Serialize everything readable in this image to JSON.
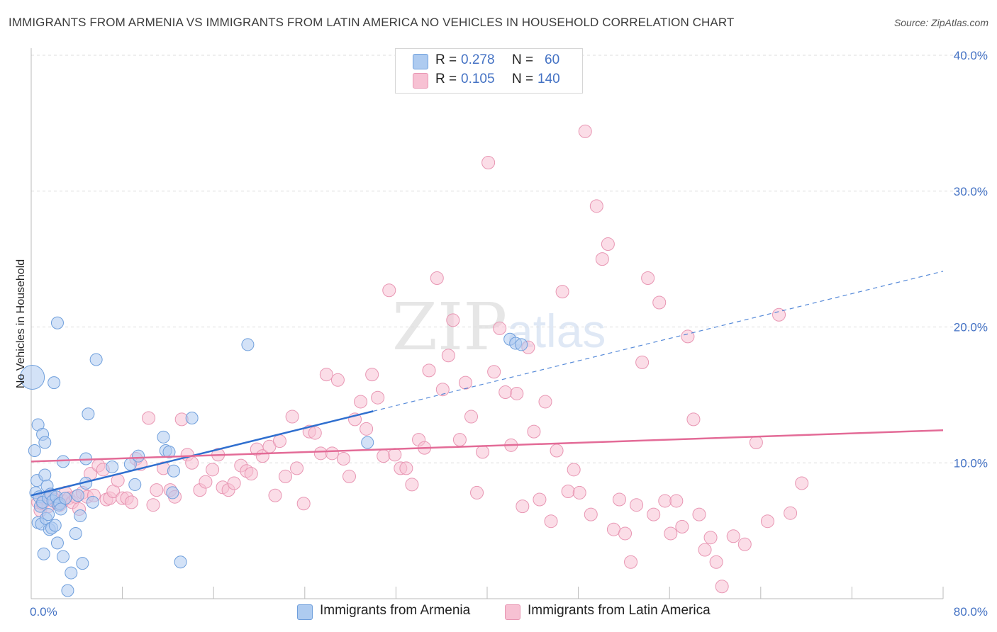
{
  "title": "IMMIGRANTS FROM ARMENIA VS IMMIGRANTS FROM LATIN AMERICA NO VEHICLES IN HOUSEHOLD CORRELATION CHART",
  "source": "Source: ZipAtlas.com",
  "watermark": {
    "zip": "ZIP",
    "atlas": "atlas"
  },
  "legend_top": {
    "rows": [
      {
        "r_label": "R =",
        "r_value": "0.278",
        "n_label": "N =",
        "n_value": "60"
      },
      {
        "r_label": "R =",
        "r_value": "0.105",
        "n_label": "N =",
        "n_value": "140"
      }
    ]
  },
  "legend_bottom": {
    "series1": "Immigrants from Armenia",
    "series2": "Immigrants from Latin America"
  },
  "colors": {
    "blue_fill": "#aecbf0",
    "blue_stroke": "#6f9fdc",
    "blue_line": "#2f6fcf",
    "pink_fill": "#f7c1d3",
    "pink_stroke": "#e896b3",
    "pink_line": "#e36b97",
    "tick_text": "#4472c4",
    "grid": "#dddddd"
  },
  "chart_data": {
    "type": "scatter",
    "title": "IMMIGRANTS FROM ARMENIA VS IMMIGRANTS FROM LATIN AMERICA NO VEHICLES IN HOUSEHOLD CORRELATION CHART",
    "xlabel": "",
    "ylabel": "No Vehicles in Household",
    "xlim": [
      0,
      80
    ],
    "ylim": [
      0,
      40
    ],
    "x_tick_labels": [
      "0.0%",
      "80.0%"
    ],
    "y_tick_labels": [
      "10.0%",
      "20.0%",
      "30.0%",
      "40.0%"
    ],
    "y_ticks": [
      10,
      20,
      30,
      40
    ],
    "grid": true,
    "legend_position": "top-center",
    "series": [
      {
        "name": "Immigrants from Armenia",
        "R": 0.278,
        "N": 60,
        "trend": {
          "x": [
            0,
            30
          ],
          "y": [
            7.6,
            13.8
          ],
          "dashed_extension_to": [
            80,
            24.1
          ]
        },
        "points": [
          [
            0.1,
            16.3
          ],
          [
            0.3,
            10.9
          ],
          [
            0.4,
            7.8
          ],
          [
            0.5,
            8.7
          ],
          [
            0.6,
            12.8
          ],
          [
            0.6,
            5.6
          ],
          [
            0.7,
            7.5
          ],
          [
            0.8,
            6.8
          ],
          [
            0.9,
            5.5
          ],
          [
            1.0,
            12.1
          ],
          [
            1.0,
            7.1
          ],
          [
            1.1,
            3.3
          ],
          [
            1.2,
            11.5
          ],
          [
            1.2,
            9.1
          ],
          [
            1.3,
            5.9
          ],
          [
            1.4,
            8.3
          ],
          [
            1.5,
            6.2
          ],
          [
            1.5,
            7.4
          ],
          [
            1.6,
            5.1
          ],
          [
            1.7,
            7.7
          ],
          [
            1.8,
            5.2
          ],
          [
            1.9,
            7.2
          ],
          [
            2.0,
            15.9
          ],
          [
            2.1,
            5.4
          ],
          [
            2.2,
            7.5
          ],
          [
            2.3,
            4.1
          ],
          [
            2.3,
            20.3
          ],
          [
            2.4,
            6.9
          ],
          [
            2.5,
            7.0
          ],
          [
            2.6,
            6.6
          ],
          [
            2.8,
            10.1
          ],
          [
            2.8,
            3.1
          ],
          [
            3.0,
            7.4
          ],
          [
            3.2,
            0.6
          ],
          [
            3.5,
            1.9
          ],
          [
            3.9,
            4.8
          ],
          [
            4.1,
            7.6
          ],
          [
            4.3,
            6.1
          ],
          [
            4.5,
            2.6
          ],
          [
            4.8,
            10.3
          ],
          [
            4.8,
            8.5
          ],
          [
            5.0,
            13.6
          ],
          [
            5.4,
            7.1
          ],
          [
            5.7,
            17.6
          ],
          [
            7.1,
            9.7
          ],
          [
            8.7,
            9.9
          ],
          [
            9.1,
            8.4
          ],
          [
            9.4,
            10.5
          ],
          [
            11.6,
            11.9
          ],
          [
            11.8,
            10.9
          ],
          [
            12.1,
            10.8
          ],
          [
            12.4,
            7.8
          ],
          [
            12.5,
            9.4
          ],
          [
            13.1,
            2.7
          ],
          [
            14.1,
            13.3
          ],
          [
            19.0,
            18.7
          ],
          [
            29.5,
            11.5
          ],
          [
            42.0,
            19.1
          ],
          [
            42.5,
            18.8
          ],
          [
            43.0,
            18.7
          ]
        ]
      },
      {
        "name": "Immigrants from Latin America",
        "R": 0.105,
        "N": 140,
        "trend": {
          "x": [
            0,
            80
          ],
          "y": [
            10.1,
            12.4
          ]
        },
        "points": [
          [
            0.6,
            7.1
          ],
          [
            0.8,
            6.5
          ],
          [
            1.0,
            7.0
          ],
          [
            1.2,
            7.4
          ],
          [
            1.5,
            6.8
          ],
          [
            1.8,
            7.6
          ],
          [
            2.0,
            7.3
          ],
          [
            2.3,
            7.0
          ],
          [
            2.5,
            6.9
          ],
          [
            2.8,
            7.2
          ],
          [
            3.0,
            7.8
          ],
          [
            3.3,
            7.4
          ],
          [
            3.6,
            7.1
          ],
          [
            3.9,
            7.5
          ],
          [
            4.2,
            6.6
          ],
          [
            4.5,
            7.8
          ],
          [
            4.9,
            7.5
          ],
          [
            5.2,
            9.2
          ],
          [
            5.5,
            7.6
          ],
          [
            5.9,
            9.8
          ],
          [
            6.3,
            9.5
          ],
          [
            6.6,
            7.3
          ],
          [
            6.9,
            7.4
          ],
          [
            7.2,
            7.9
          ],
          [
            7.6,
            8.7
          ],
          [
            8.0,
            7.4
          ],
          [
            8.4,
            7.4
          ],
          [
            8.8,
            7.1
          ],
          [
            9.2,
            10.3
          ],
          [
            9.6,
            9.9
          ],
          [
            10.3,
            13.3
          ],
          [
            10.7,
            6.9
          ],
          [
            11.0,
            8.0
          ],
          [
            11.6,
            9.6
          ],
          [
            12.2,
            8.0
          ],
          [
            12.6,
            7.5
          ],
          [
            13.2,
            13.2
          ],
          [
            13.7,
            10.6
          ],
          [
            14.1,
            10.0
          ],
          [
            14.8,
            8.0
          ],
          [
            15.3,
            8.6
          ],
          [
            15.9,
            9.5
          ],
          [
            16.4,
            10.6
          ],
          [
            16.8,
            8.2
          ],
          [
            17.3,
            8.0
          ],
          [
            17.8,
            8.5
          ],
          [
            18.4,
            9.8
          ],
          [
            18.9,
            9.4
          ],
          [
            19.3,
            9.2
          ],
          [
            19.8,
            11.0
          ],
          [
            20.3,
            10.5
          ],
          [
            20.9,
            11.2
          ],
          [
            21.4,
            7.6
          ],
          [
            21.8,
            11.6
          ],
          [
            22.3,
            9.0
          ],
          [
            22.9,
            13.4
          ],
          [
            23.3,
            9.6
          ],
          [
            23.9,
            7.0
          ],
          [
            24.4,
            12.3
          ],
          [
            24.9,
            12.2
          ],
          [
            25.4,
            10.7
          ],
          [
            25.9,
            16.5
          ],
          [
            26.4,
            10.7
          ],
          [
            26.9,
            16.1
          ],
          [
            27.4,
            10.3
          ],
          [
            27.9,
            9.0
          ],
          [
            28.4,
            13.2
          ],
          [
            28.9,
            14.5
          ],
          [
            29.4,
            12.5
          ],
          [
            29.9,
            16.5
          ],
          [
            30.4,
            14.8
          ],
          [
            30.9,
            10.5
          ],
          [
            31.4,
            22.7
          ],
          [
            31.9,
            10.6
          ],
          [
            32.4,
            9.6
          ],
          [
            32.9,
            9.6
          ],
          [
            33.4,
            8.4
          ],
          [
            34.0,
            11.7
          ],
          [
            34.5,
            11.1
          ],
          [
            34.9,
            16.8
          ],
          [
            35.6,
            23.6
          ],
          [
            36.1,
            15.4
          ],
          [
            36.6,
            17.9
          ],
          [
            37.0,
            20.5
          ],
          [
            37.6,
            11.7
          ],
          [
            38.1,
            15.9
          ],
          [
            38.6,
            13.4
          ],
          [
            39.1,
            7.8
          ],
          [
            39.6,
            10.8
          ],
          [
            40.1,
            32.1
          ],
          [
            40.6,
            16.7
          ],
          [
            41.1,
            19.9
          ],
          [
            41.6,
            15.2
          ],
          [
            42.1,
            11.3
          ],
          [
            42.6,
            15.1
          ],
          [
            43.1,
            6.8
          ],
          [
            43.6,
            18.5
          ],
          [
            44.1,
            12.3
          ],
          [
            44.6,
            7.3
          ],
          [
            45.1,
            14.5
          ],
          [
            45.6,
            5.7
          ],
          [
            46.1,
            10.9
          ],
          [
            46.6,
            22.6
          ],
          [
            47.1,
            7.9
          ],
          [
            47.6,
            9.5
          ],
          [
            48.1,
            7.8
          ],
          [
            48.6,
            34.4
          ],
          [
            49.1,
            6.2
          ],
          [
            49.6,
            28.9
          ],
          [
            50.1,
            25.0
          ],
          [
            50.6,
            26.1
          ],
          [
            51.1,
            5.1
          ],
          [
            51.6,
            7.3
          ],
          [
            52.1,
            4.8
          ],
          [
            52.6,
            2.7
          ],
          [
            53.1,
            6.9
          ],
          [
            53.6,
            17.4
          ],
          [
            54.1,
            23.6
          ],
          [
            54.6,
            6.2
          ],
          [
            55.1,
            21.8
          ],
          [
            55.6,
            7.2
          ],
          [
            56.1,
            4.8
          ],
          [
            56.6,
            7.2
          ],
          [
            57.1,
            5.3
          ],
          [
            57.6,
            19.3
          ],
          [
            58.1,
            13.2
          ],
          [
            58.6,
            6.2
          ],
          [
            59.1,
            3.6
          ],
          [
            59.6,
            4.5
          ],
          [
            60.1,
            2.7
          ],
          [
            60.6,
            0.9
          ],
          [
            61.6,
            4.6
          ],
          [
            62.6,
            4.0
          ],
          [
            63.6,
            11.5
          ],
          [
            64.6,
            5.7
          ],
          [
            65.6,
            20.9
          ],
          [
            66.6,
            6.3
          ],
          [
            67.6,
            8.5
          ]
        ]
      }
    ]
  }
}
